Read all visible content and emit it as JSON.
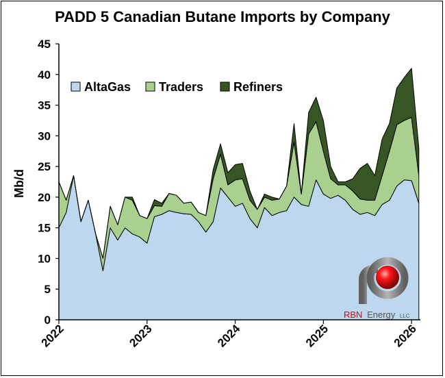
{
  "chart_data": {
    "type": "area",
    "stacked": true,
    "title": "PADD 5 Canadian Butane Imports by Company",
    "ylabel": "Mb/d",
    "xlabel": "",
    "ylim": [
      0,
      45
    ],
    "xlim": [
      2022.0,
      2026.1
    ],
    "yticks": [
      "0",
      "5",
      "10",
      "15",
      "20",
      "25",
      "30",
      "35",
      "40",
      "45"
    ],
    "xticks": [
      {
        "value": 2022,
        "label": "2022"
      },
      {
        "value": 2023,
        "label": "2023"
      },
      {
        "value": 2024,
        "label": "2024"
      },
      {
        "value": 2025,
        "label": "2025"
      },
      {
        "value": 2026,
        "label": "2026"
      }
    ],
    "grid": false,
    "legend_position": "top-left",
    "x": [
      2022.0,
      2022.083,
      2022.167,
      2022.25,
      2022.333,
      2022.417,
      2022.5,
      2022.583,
      2022.667,
      2022.75,
      2022.833,
      2022.917,
      2023.0,
      2023.083,
      2023.167,
      2023.25,
      2023.333,
      2023.417,
      2023.5,
      2023.583,
      2023.667,
      2023.75,
      2023.833,
      2023.917,
      2024.0,
      2024.083,
      2024.167,
      2024.25,
      2024.333,
      2024.417,
      2024.5,
      2024.583,
      2024.667,
      2024.75,
      2024.833,
      2024.917,
      2025.0,
      2025.083,
      2025.167,
      2025.25,
      2025.333,
      2025.417,
      2025.5,
      2025.583,
      2025.667,
      2025.75,
      2025.833,
      2025.917,
      2026.0,
      2026.083
    ],
    "series": [
      {
        "name": "AltaGas",
        "color": "#bdd7ee",
        "values": [
          15.0,
          17.5,
          23.5,
          16.0,
          19.5,
          14.0,
          8.0,
          15.0,
          13.0,
          15.0,
          14.0,
          13.5,
          12.5,
          16.8,
          17.2,
          17.8,
          17.5,
          17.3,
          17.2,
          16.0,
          14.3,
          16.0,
          21.5,
          20.0,
          18.5,
          19.0,
          16.5,
          15.0,
          18.3,
          17.0,
          17.5,
          17.8,
          20.0,
          18.8,
          18.5,
          22.8,
          20.5,
          19.8,
          20.3,
          19.5,
          18.0,
          17.2,
          17.5,
          17.0,
          18.8,
          19.5,
          21.8,
          22.8,
          22.7,
          19.0
        ]
      },
      {
        "name": "Traders",
        "color": "#a9d08e",
        "values": [
          7.5,
          2.0,
          0.0,
          0.0,
          0.0,
          0.0,
          2.0,
          3.5,
          2.5,
          5.0,
          5.5,
          3.5,
          4.0,
          1.8,
          1.3,
          2.8,
          2.8,
          1.7,
          2.0,
          1.5,
          2.7,
          7.0,
          5.5,
          2.0,
          4.3,
          4.0,
          3.0,
          3.0,
          1.7,
          2.5,
          2.2,
          4.0,
          9.0,
          1.7,
          11.8,
          9.5,
          7.0,
          3.2,
          1.7,
          2.5,
          3.0,
          2.5,
          2.0,
          2.5,
          4.7,
          8.0,
          10.0,
          9.7,
          10.3,
          4.5
        ]
      },
      {
        "name": "Refiners",
        "color": "#375623",
        "values": [
          0.0,
          0.0,
          0.0,
          0.0,
          0.0,
          0.0,
          0.0,
          0.0,
          0.0,
          0.0,
          0.5,
          0.0,
          0.0,
          1.0,
          0.5,
          0.0,
          0.0,
          0.0,
          0.0,
          0.0,
          0.0,
          1.5,
          1.7,
          2.0,
          2.5,
          2.5,
          1.5,
          0.0,
          0.5,
          0.5,
          0.0,
          0.0,
          3.0,
          0.0,
          3.5,
          4.0,
          5.0,
          2.0,
          0.5,
          0.5,
          2.0,
          5.0,
          6.0,
          4.0,
          6.0,
          4.5,
          6.0,
          7.0,
          8.0,
          4.5
        ]
      }
    ]
  },
  "logo": {
    "name_red": "RBN",
    "name_grey": "Energy",
    "suffix": "LLC",
    "accent_color": "#e00000",
    "pipe_color": "#8a8a8a"
  }
}
